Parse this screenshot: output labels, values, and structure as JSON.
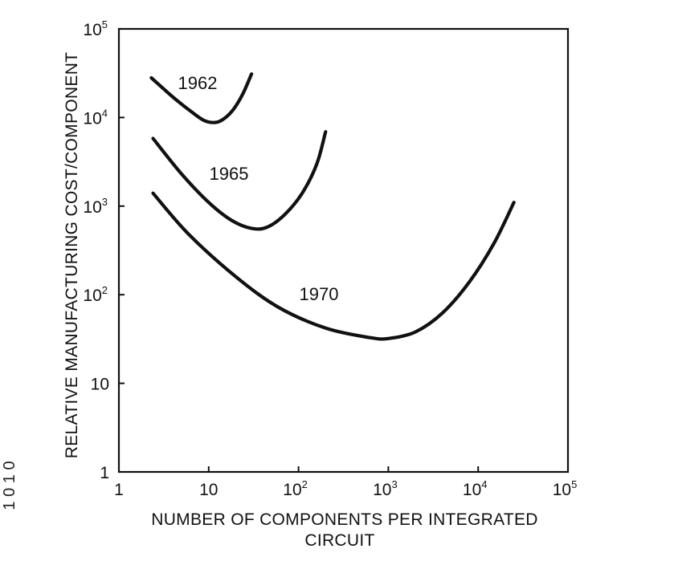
{
  "chart_data": {
    "type": "line",
    "title": "",
    "xlabel_lines": [
      "NUMBER OF COMPONENTS PER INTEGRATED",
      "CIRCUIT"
    ],
    "ylabel": "RELATIVE MANUFACTURING COST/COMPONENT",
    "x_scale": "log",
    "y_scale": "log",
    "xlim": [
      1,
      100000
    ],
    "ylim": [
      1,
      100000
    ],
    "grid": false,
    "x_ticks": [
      {
        "base": "1",
        "exp": ""
      },
      {
        "base": "10",
        "exp": ""
      },
      {
        "base": "10",
        "exp": "2"
      },
      {
        "base": "10",
        "exp": "3"
      },
      {
        "base": "10",
        "exp": "4"
      },
      {
        "base": "10",
        "exp": "5"
      }
    ],
    "y_ticks": [
      {
        "base": "1",
        "exp": ""
      },
      {
        "base": "10",
        "exp": ""
      },
      {
        "base": "10",
        "exp": "2"
      },
      {
        "base": "10",
        "exp": "3"
      },
      {
        "base": "10",
        "exp": "4"
      },
      {
        "base": "10",
        "exp": "5"
      }
    ],
    "series": [
      {
        "name": "1962",
        "x": [
          2.3,
          4,
          6.5,
          9,
          12,
          15,
          19,
          24,
          30
        ],
        "y": [
          28000,
          17000,
          11500,
          9200,
          8800,
          9800,
          12500,
          18500,
          31000
        ]
      },
      {
        "name": "1965",
        "x": [
          2.4,
          5,
          10,
          18,
          30,
          45,
          70,
          110,
          160,
          200
        ],
        "y": [
          5800,
          2300,
          1100,
          690,
          560,
          580,
          800,
          1400,
          3000,
          6900
        ]
      },
      {
        "name": "1970",
        "x": [
          2.4,
          6,
          20,
          60,
          200,
          600,
          1000,
          2000,
          4000,
          8000,
          15000,
          25000
        ],
        "y": [
          1400,
          480,
          160,
          72,
          42,
          33,
          32,
          38,
          62,
          140,
          380,
          1100
        ]
      }
    ]
  },
  "margin_text": "1 0 1 0"
}
